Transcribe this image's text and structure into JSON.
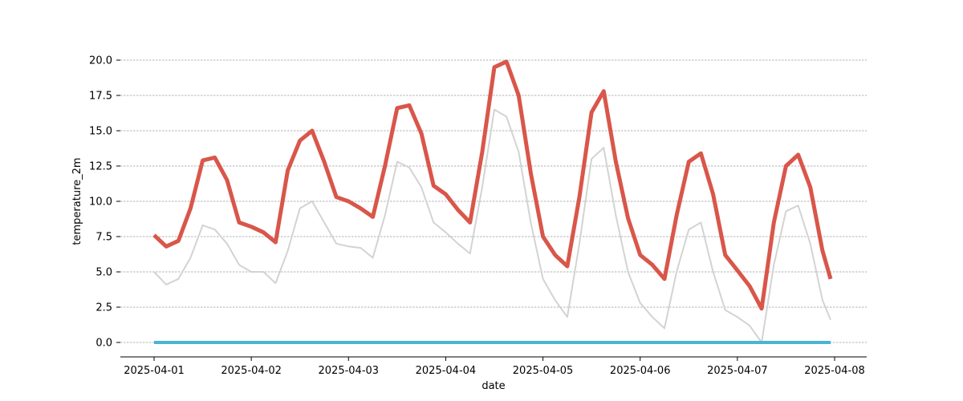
{
  "chart_data": {
    "type": "line",
    "xlabel": "date",
    "ylabel": "temperature_2m",
    "x_tick_labels": [
      "2025-04-01",
      "2025-04-02",
      "2025-04-03",
      "2025-04-04",
      "2025-04-05",
      "2025-04-06",
      "2025-04-07",
      "2025-04-08"
    ],
    "y_tick_labels": [
      "0.0",
      "2.5",
      "5.0",
      "7.5",
      "10.0",
      "12.5",
      "15.0",
      "17.5",
      "20.0"
    ],
    "xlim": [
      "2025-04-01",
      "2025-04-08"
    ],
    "ylim": [
      0,
      20
    ],
    "grid": "horizontal-dashed",
    "legend": "none",
    "series": [
      {
        "color": "#d9564a",
        "points": [
          [
            "2025-04-01T00:00",
            7.6
          ],
          [
            "2025-04-01T03:00",
            6.8
          ],
          [
            "2025-04-01T06:00",
            7.2
          ],
          [
            "2025-04-01T09:00",
            9.5
          ],
          [
            "2025-04-01T12:00",
            12.9
          ],
          [
            "2025-04-01T15:00",
            13.1
          ],
          [
            "2025-04-01T18:00",
            11.5
          ],
          [
            "2025-04-01T21:00",
            8.5
          ],
          [
            "2025-04-02T00:00",
            8.2
          ],
          [
            "2025-04-02T03:00",
            7.8
          ],
          [
            "2025-04-02T06:00",
            7.1
          ],
          [
            "2025-04-02T09:00",
            12.2
          ],
          [
            "2025-04-02T12:00",
            14.3
          ],
          [
            "2025-04-02T15:00",
            15.0
          ],
          [
            "2025-04-02T18:00",
            12.8
          ],
          [
            "2025-04-02T21:00",
            10.3
          ],
          [
            "2025-04-03T00:00",
            10.0
          ],
          [
            "2025-04-03T03:00",
            9.5
          ],
          [
            "2025-04-03T06:00",
            8.9
          ],
          [
            "2025-04-03T09:00",
            12.5
          ],
          [
            "2025-04-03T12:00",
            16.6
          ],
          [
            "2025-04-03T15:00",
            16.8
          ],
          [
            "2025-04-03T18:00",
            14.8
          ],
          [
            "2025-04-03T21:00",
            11.1
          ],
          [
            "2025-04-04T00:00",
            10.5
          ],
          [
            "2025-04-04T03:00",
            9.4
          ],
          [
            "2025-04-04T06:00",
            8.5
          ],
          [
            "2025-04-04T09:00",
            13.5
          ],
          [
            "2025-04-04T12:00",
            19.5
          ],
          [
            "2025-04-04T15:00",
            19.9
          ],
          [
            "2025-04-04T18:00",
            17.5
          ],
          [
            "2025-04-04T21:00",
            12.0
          ],
          [
            "2025-04-05T00:00",
            7.5
          ],
          [
            "2025-04-05T03:00",
            6.2
          ],
          [
            "2025-04-05T06:00",
            5.4
          ],
          [
            "2025-04-05T09:00",
            10.3
          ],
          [
            "2025-04-05T12:00",
            16.3
          ],
          [
            "2025-04-05T15:00",
            17.8
          ],
          [
            "2025-04-05T18:00",
            12.8
          ],
          [
            "2025-04-05T21:00",
            8.8
          ],
          [
            "2025-04-06T00:00",
            6.2
          ],
          [
            "2025-04-06T03:00",
            5.5
          ],
          [
            "2025-04-06T06:00",
            4.5
          ],
          [
            "2025-04-06T09:00",
            9.0
          ],
          [
            "2025-04-06T12:00",
            12.8
          ],
          [
            "2025-04-06T15:00",
            13.4
          ],
          [
            "2025-04-06T18:00",
            10.5
          ],
          [
            "2025-04-06T21:00",
            6.2
          ],
          [
            "2025-04-07T00:00",
            5.1
          ],
          [
            "2025-04-07T03:00",
            4.0
          ],
          [
            "2025-04-07T06:00",
            2.4
          ],
          [
            "2025-04-07T09:00",
            8.5
          ],
          [
            "2025-04-07T12:00",
            12.5
          ],
          [
            "2025-04-07T15:00",
            13.3
          ],
          [
            "2025-04-07T18:00",
            11.0
          ],
          [
            "2025-04-07T21:00",
            6.5
          ],
          [
            "2025-04-07T23:00",
            4.5
          ]
        ]
      },
      {
        "color": "#d3d3d3",
        "points": [
          [
            "2025-04-01T00:00",
            5.0
          ],
          [
            "2025-04-01T03:00",
            4.1
          ],
          [
            "2025-04-01T06:00",
            4.5
          ],
          [
            "2025-04-01T09:00",
            6.0
          ],
          [
            "2025-04-01T12:00",
            8.3
          ],
          [
            "2025-04-01T15:00",
            8.0
          ],
          [
            "2025-04-01T18:00",
            7.0
          ],
          [
            "2025-04-01T21:00",
            5.5
          ],
          [
            "2025-04-02T00:00",
            5.0
          ],
          [
            "2025-04-02T03:00",
            5.0
          ],
          [
            "2025-04-02T06:00",
            4.2
          ],
          [
            "2025-04-02T09:00",
            6.5
          ],
          [
            "2025-04-02T12:00",
            9.5
          ],
          [
            "2025-04-02T15:00",
            10.0
          ],
          [
            "2025-04-02T18:00",
            8.5
          ],
          [
            "2025-04-02T21:00",
            7.0
          ],
          [
            "2025-04-03T00:00",
            6.8
          ],
          [
            "2025-04-03T03:00",
            6.7
          ],
          [
            "2025-04-03T06:00",
            6.0
          ],
          [
            "2025-04-03T09:00",
            9.0
          ],
          [
            "2025-04-03T12:00",
            12.8
          ],
          [
            "2025-04-03T15:00",
            12.4
          ],
          [
            "2025-04-03T18:00",
            11.0
          ],
          [
            "2025-04-03T21:00",
            8.5
          ],
          [
            "2025-04-04T00:00",
            7.8
          ],
          [
            "2025-04-04T03:00",
            7.0
          ],
          [
            "2025-04-04T06:00",
            6.3
          ],
          [
            "2025-04-04T09:00",
            11.0
          ],
          [
            "2025-04-04T12:00",
            16.5
          ],
          [
            "2025-04-04T15:00",
            16.0
          ],
          [
            "2025-04-04T18:00",
            13.5
          ],
          [
            "2025-04-04T21:00",
            8.5
          ],
          [
            "2025-04-05T00:00",
            4.5
          ],
          [
            "2025-04-05T03:00",
            3.0
          ],
          [
            "2025-04-05T06:00",
            1.8
          ],
          [
            "2025-04-05T09:00",
            7.0
          ],
          [
            "2025-04-05T12:00",
            13.0
          ],
          [
            "2025-04-05T15:00",
            13.8
          ],
          [
            "2025-04-05T18:00",
            9.0
          ],
          [
            "2025-04-05T21:00",
            5.0
          ],
          [
            "2025-04-06T00:00",
            2.8
          ],
          [
            "2025-04-06T03:00",
            1.8
          ],
          [
            "2025-04-06T06:00",
            1.0
          ],
          [
            "2025-04-06T09:00",
            5.0
          ],
          [
            "2025-04-06T12:00",
            8.0
          ],
          [
            "2025-04-06T15:00",
            8.5
          ],
          [
            "2025-04-06T18:00",
            5.0
          ],
          [
            "2025-04-06T21:00",
            2.3
          ],
          [
            "2025-04-07T00:00",
            1.8
          ],
          [
            "2025-04-07T03:00",
            1.2
          ],
          [
            "2025-04-07T06:00",
            0.0
          ],
          [
            "2025-04-07T09:00",
            5.5
          ],
          [
            "2025-04-07T12:00",
            9.3
          ],
          [
            "2025-04-07T15:00",
            9.7
          ],
          [
            "2025-04-07T18:00",
            7.0
          ],
          [
            "2025-04-07T21:00",
            3.0
          ],
          [
            "2025-04-07T23:00",
            1.6
          ]
        ]
      },
      {
        "color": "#4ab3d6",
        "points": [
          [
            "2025-04-01T00:00",
            0.0
          ],
          [
            "2025-04-07T23:00",
            0.0
          ]
        ]
      }
    ]
  }
}
